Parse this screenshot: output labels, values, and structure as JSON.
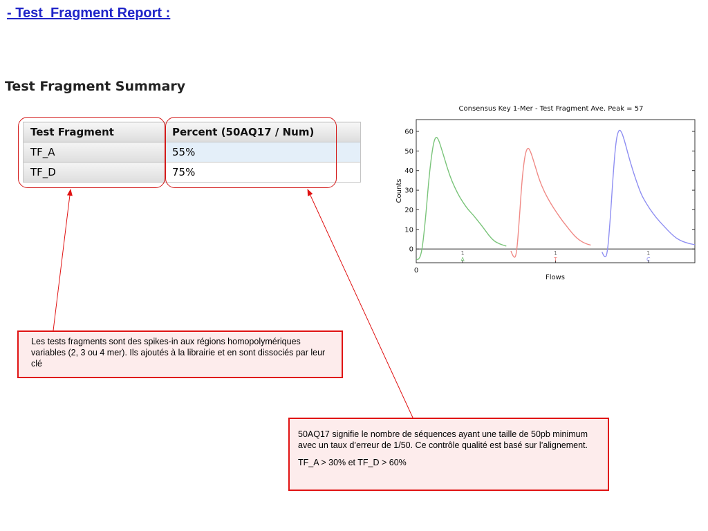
{
  "slide": {
    "title": "- Test  Fragment Report :"
  },
  "summary": {
    "title": "Test Fragment Summary",
    "columns": [
      "Test Fragment",
      "Percent (50AQ17 / Num)"
    ],
    "rows": [
      {
        "fragment": "TF_A",
        "percent": "55%"
      },
      {
        "fragment": "TF_D",
        "percent": "75%"
      }
    ]
  },
  "callouts": {
    "fragments_note": "Les tests fragments sont des spikes-in aux régions homopolymériques variables (2, 3 ou 4 mer). Ils ajoutés à la librairie et en sont dissociés par leur clé",
    "quality_note": "50AQ17 signifie le nombre de  séquences ayant une taille de 50pb minimum avec un taux d’erreur de 1/50. Ce contrôle qualité est basé sur l’alignement.",
    "threshold_note": "TF_A > 30% et TF_D > 60%"
  },
  "colors": {
    "title_blue": "#1f24c8",
    "annotation_red": "#e01212",
    "series_A": "#7ac47a",
    "series_T": "#f08a86",
    "series_C": "#8f8ff2"
  },
  "chart_data": {
    "type": "line",
    "title": "Consensus Key 1-Mer - Test Fragment Ave. Peak = 57",
    "xlabel": "Flows",
    "ylabel": "Counts",
    "xlim": [
      0,
      3
    ],
    "ylim": [
      -7,
      66
    ],
    "yticks": [
      0,
      10,
      20,
      30,
      40,
      50,
      60
    ],
    "xtick_labels": [
      "0"
    ],
    "flow_labels": [
      {
        "x": 0.5,
        "count": "1",
        "base": "A",
        "color": "#7ac47a"
      },
      {
        "x": 1.5,
        "count": "1",
        "base": "T",
        "color": "#f08a86"
      },
      {
        "x": 2.5,
        "count": "1",
        "base": "C",
        "color": "#8f8ff2"
      }
    ],
    "series": [
      {
        "base": "A",
        "color": "#7ac47a",
        "points": [
          [
            0.0,
            -5
          ],
          [
            0.02,
            -6
          ],
          [
            0.06,
            -2
          ],
          [
            0.1,
            15
          ],
          [
            0.14,
            38
          ],
          [
            0.18,
            53
          ],
          [
            0.21,
            57.5
          ],
          [
            0.24,
            56
          ],
          [
            0.28,
            50
          ],
          [
            0.33,
            42
          ],
          [
            0.38,
            35
          ],
          [
            0.45,
            28
          ],
          [
            0.5,
            24
          ],
          [
            0.56,
            20
          ],
          [
            0.62,
            17
          ],
          [
            0.67,
            14
          ],
          [
            0.72,
            11
          ],
          [
            0.78,
            7
          ],
          [
            0.84,
            4
          ],
          [
            0.9,
            2.5
          ],
          [
            0.97,
            1.5
          ]
        ]
      },
      {
        "base": "T",
        "color": "#f08a86",
        "points": [
          [
            1.02,
            -1
          ],
          [
            1.05,
            -5
          ],
          [
            1.08,
            -3
          ],
          [
            1.11,
            15
          ],
          [
            1.14,
            36
          ],
          [
            1.17,
            48
          ],
          [
            1.2,
            52
          ],
          [
            1.23,
            50
          ],
          [
            1.27,
            44
          ],
          [
            1.32,
            36
          ],
          [
            1.38,
            29
          ],
          [
            1.45,
            23
          ],
          [
            1.52,
            18
          ],
          [
            1.58,
            14
          ],
          [
            1.63,
            11
          ],
          [
            1.68,
            8
          ],
          [
            1.73,
            5.5
          ],
          [
            1.79,
            3.5
          ],
          [
            1.84,
            2.5
          ],
          [
            1.88,
            2
          ]
        ]
      },
      {
        "base": "C",
        "color": "#8f8ff2",
        "points": [
          [
            2.0,
            -1.5
          ],
          [
            2.03,
            -5
          ],
          [
            2.06,
            -2
          ],
          [
            2.09,
            16
          ],
          [
            2.12,
            38
          ],
          [
            2.15,
            55
          ],
          [
            2.18,
            61
          ],
          [
            2.21,
            60
          ],
          [
            2.25,
            54
          ],
          [
            2.3,
            45
          ],
          [
            2.36,
            36
          ],
          [
            2.42,
            28
          ],
          [
            2.48,
            23
          ],
          [
            2.55,
            18
          ],
          [
            2.62,
            14
          ],
          [
            2.68,
            11
          ],
          [
            2.74,
            8
          ],
          [
            2.8,
            5.5
          ],
          [
            2.86,
            4
          ],
          [
            2.92,
            3
          ],
          [
            2.97,
            2.5
          ],
          [
            3.0,
            2.2
          ]
        ]
      }
    ]
  }
}
